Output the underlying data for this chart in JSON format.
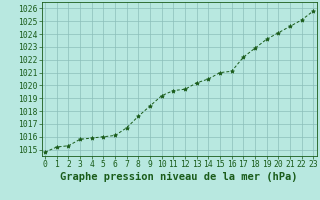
{
  "x": [
    0,
    1,
    2,
    3,
    4,
    5,
    6,
    7,
    8,
    9,
    10,
    11,
    12,
    13,
    14,
    15,
    16,
    17,
    18,
    19,
    20,
    21,
    22,
    23
  ],
  "y": [
    1014.8,
    1015.2,
    1015.3,
    1015.8,
    1015.9,
    1016.0,
    1016.1,
    1016.7,
    1017.6,
    1018.4,
    1019.2,
    1019.6,
    1019.7,
    1020.2,
    1020.5,
    1021.0,
    1021.1,
    1022.2,
    1022.9,
    1023.6,
    1024.1,
    1024.6,
    1025.1,
    1025.8
  ],
  "line_color": "#1a5c1a",
  "marker": "*",
  "title": "Graphe pression niveau de la mer (hPa)",
  "bg_color": "#b8e8e0",
  "grid_color": "#8cbfba",
  "ylim": [
    1014.5,
    1026.5
  ],
  "yticks": [
    1015,
    1016,
    1017,
    1018,
    1019,
    1020,
    1021,
    1022,
    1023,
    1024,
    1025,
    1026
  ],
  "xlim": [
    -0.3,
    23.3
  ],
  "xticks": [
    0,
    1,
    2,
    3,
    4,
    5,
    6,
    7,
    8,
    9,
    10,
    11,
    12,
    13,
    14,
    15,
    16,
    17,
    18,
    19,
    20,
    21,
    22,
    23
  ],
  "title_fontsize": 7.5,
  "tick_fontsize": 5.8,
  "title_color": "#1a5c1a",
  "tick_color": "#1a5c1a"
}
